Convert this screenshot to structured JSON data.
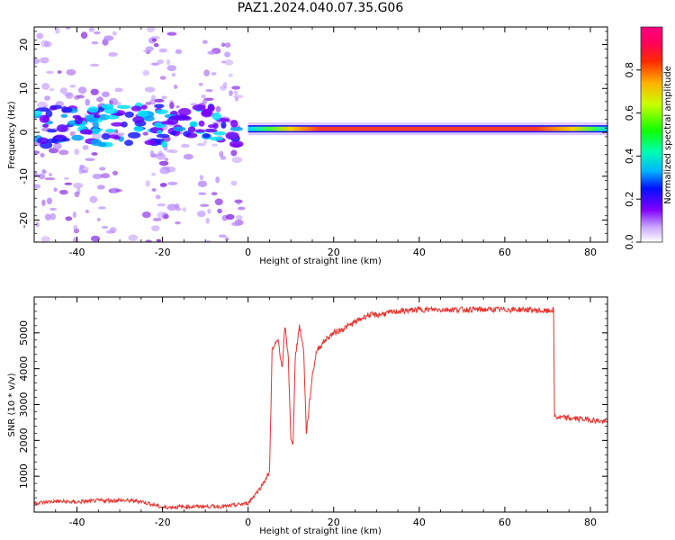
{
  "title": "PAZ1.2024.040.07.35.G06",
  "colors": {
    "snr_line": "#e8322d",
    "heat_fill": "#b98cff",
    "axis": "#000000"
  },
  "chart_data": [
    {
      "type": "heatmap",
      "xlabel": "Height of straight line (km)",
      "ylabel": "Frequency (Hz)",
      "xlim": [
        -50,
        84
      ],
      "ylim": [
        -25,
        24
      ],
      "xticks": [
        -40,
        -20,
        0,
        20,
        40,
        60,
        80
      ],
      "yticks": [
        -20,
        -10,
        0,
        10,
        20
      ],
      "colorbar": {
        "label": "Normalized spectral amplitude",
        "range": [
          0,
          1
        ],
        "ticks": [
          "0.0",
          "0.2",
          "0.4",
          "0.6",
          "0.8"
        ],
        "colormap": "gist_rainbow"
      },
      "main_band": {
        "frequency_hz": 0.8,
        "x_range": [
          0,
          84
        ]
      }
    },
    {
      "type": "line",
      "xlabel": "Height of straight line (km)",
      "ylabel": "SNR (10 * v/v)",
      "xlim": [
        -50,
        84
      ],
      "ylim": [
        0,
        6000
      ],
      "xticks": [
        -40,
        -20,
        0,
        20,
        40,
        60,
        80
      ],
      "yticks": [
        1000,
        2000,
        3000,
        4000,
        5000
      ],
      "series": [
        {
          "x": [
            -50,
            -45,
            -40,
            -35,
            -30,
            -25,
            -22,
            -20,
            -15,
            -10,
            -5,
            0,
            3,
            5,
            5.6,
            7,
            8,
            8.6,
            9.4,
            10,
            10.5,
            11,
            12,
            13,
            13.6,
            15,
            16,
            18,
            20,
            22,
            25,
            28,
            30,
            35,
            40,
            45,
            50,
            55,
            60,
            65,
            70,
            71.4,
            71.6,
            72,
            75,
            80,
            84
          ],
          "y": [
            250,
            300,
            280,
            320,
            330,
            300,
            200,
            130,
            150,
            160,
            160,
            250,
            700,
            1100,
            4500,
            4800,
            4000,
            5200,
            4300,
            2000,
            1850,
            4300,
            5200,
            4500,
            2200,
            3800,
            4500,
            4800,
            5000,
            5100,
            5300,
            5500,
            5500,
            5600,
            5650,
            5650,
            5650,
            5650,
            5650,
            5650,
            5600,
            5650,
            2700,
            2650,
            2620,
            2580,
            2500
          ]
        }
      ]
    }
  ]
}
